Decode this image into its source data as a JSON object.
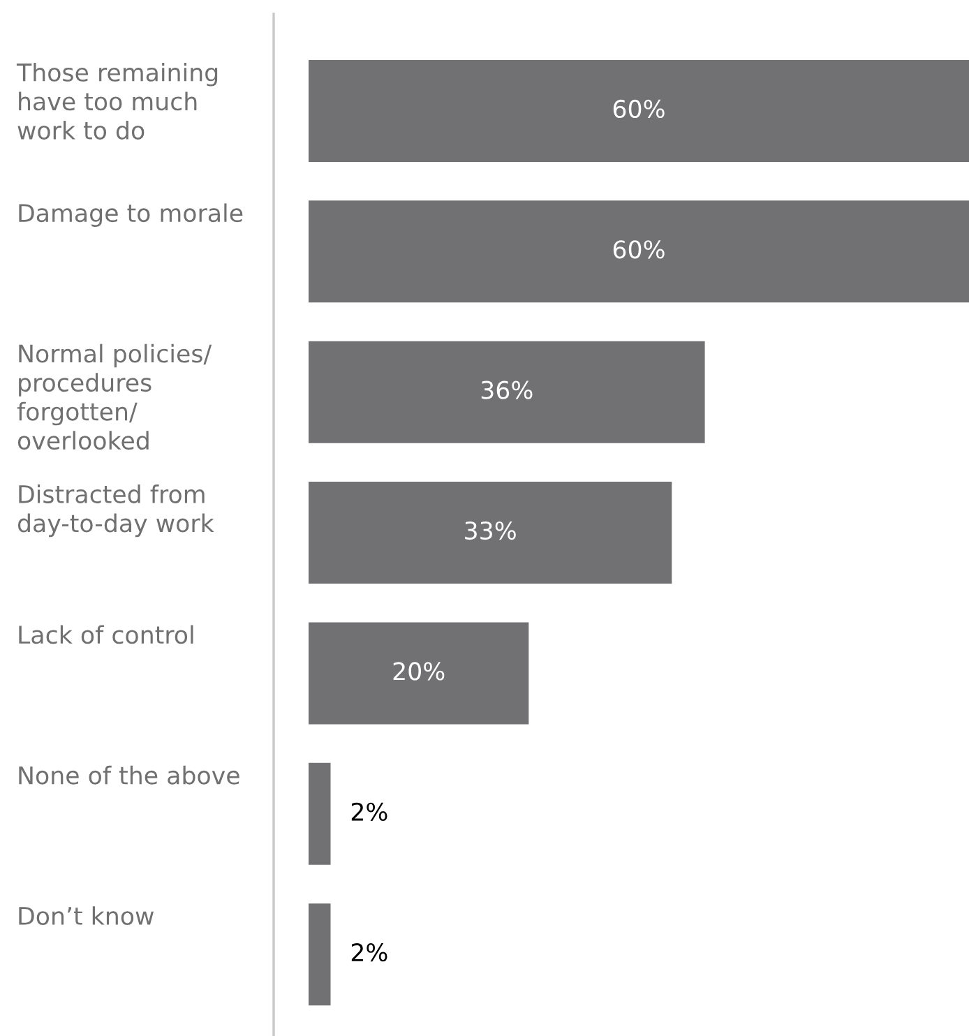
{
  "chart_data": {
    "type": "bar",
    "orientation": "horizontal",
    "categories": [
      "Those remaining\nhave too much\nwork to do",
      "Damage to morale",
      "Normal policies/\nprocedures\nforgotten/\noverlooked",
      "Distracted from\nday-to-day work",
      "Lack of control",
      "None of the above",
      "Don’t know"
    ],
    "values": [
      60,
      60,
      36,
      33,
      20,
      2,
      2
    ],
    "color": "#717174",
    "value_labels": [
      "60%",
      "60%",
      "36%",
      "33%",
      "20%",
      "2%",
      "2%"
    ],
    "xlim": [
      0,
      60
    ],
    "tick_labels": "y"
  }
}
